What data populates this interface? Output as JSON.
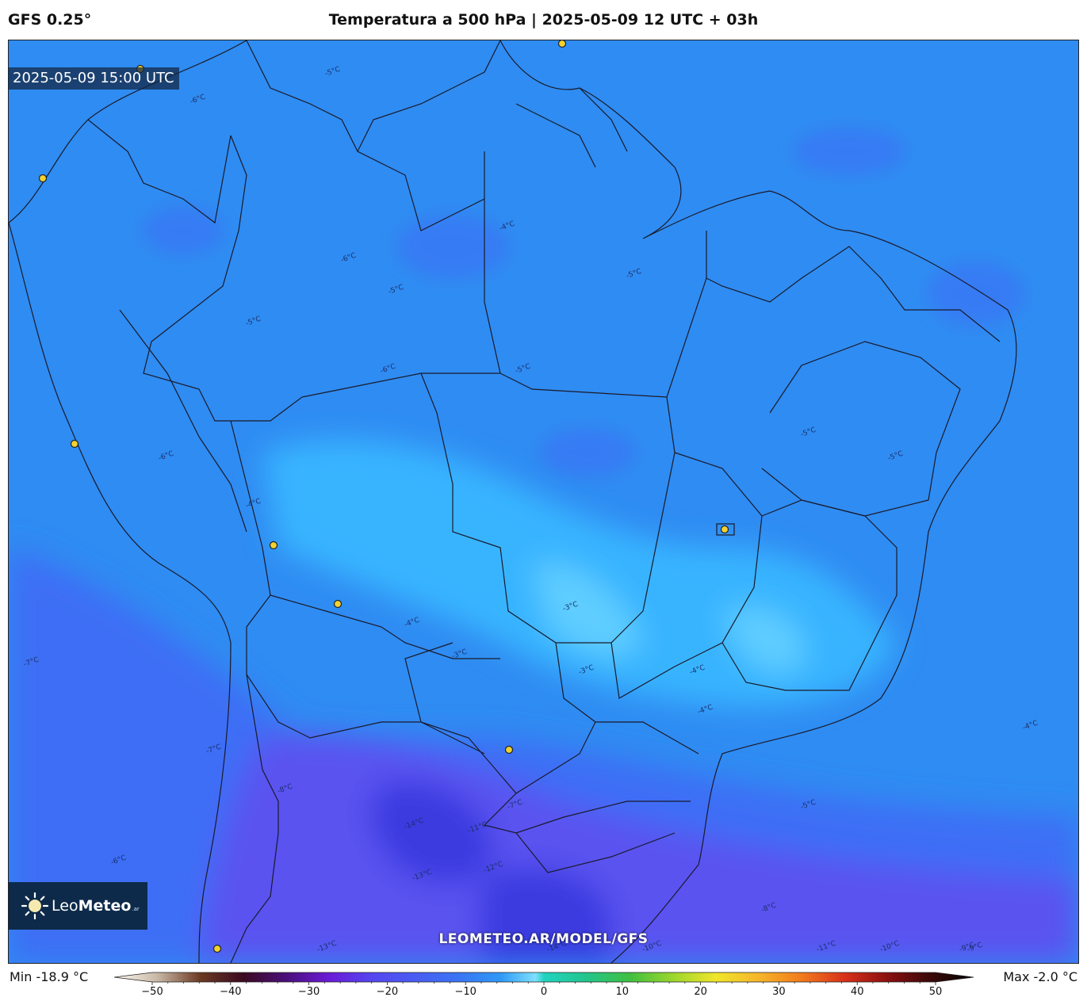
{
  "header": {
    "model": "GFS 0.25°",
    "title": "Temperatura a 500 hPa | 2025-05-09 12 UTC + 03h"
  },
  "map": {
    "valid_time": "2025-05-09 15:00 UTC",
    "watermark": "LEOMETEO.AR/MODEL/GFS",
    "colors": {
      "ocean_north": "#2f8cf2",
      "land_warm": "#38b4ff",
      "cool": "#3d6ef5",
      "cold": "#5a52f0",
      "coldest": "#3a3ae0",
      "border": "#1a1a2a",
      "city": "#f2d230"
    },
    "contour_labels": [
      {
        "text": "-5°C"
      },
      {
        "text": "-6°C"
      },
      {
        "text": "-6°C"
      },
      {
        "text": "-5°C"
      },
      {
        "text": "-4°C"
      },
      {
        "text": "-5°C"
      },
      {
        "text": "-6°C"
      },
      {
        "text": "-5°C"
      },
      {
        "text": "-5°C"
      },
      {
        "text": "-4°C"
      },
      {
        "text": "-4°C"
      },
      {
        "text": "-3°C"
      },
      {
        "text": "-3°C"
      },
      {
        "text": "-3°C"
      },
      {
        "text": "-4°C"
      },
      {
        "text": "-5°C"
      },
      {
        "text": "-6°C"
      },
      {
        "text": "-7°C"
      },
      {
        "text": "-7°C"
      },
      {
        "text": "-8°C"
      },
      {
        "text": "-6°C"
      },
      {
        "text": "-7°C"
      },
      {
        "text": "-11°C"
      },
      {
        "text": "-12°C"
      },
      {
        "text": "-13°C"
      },
      {
        "text": "-14°C"
      },
      {
        "text": "-14°C"
      },
      {
        "text": "-13°C"
      },
      {
        "text": "-8°C"
      },
      {
        "text": "-9°C"
      },
      {
        "text": "-10°C"
      },
      {
        "text": "-11°C"
      },
      {
        "text": "-10°C"
      },
      {
        "text": "-9°C"
      },
      {
        "text": "-4°C"
      },
      {
        "text": "-4°C"
      },
      {
        "text": "-5°C"
      },
      {
        "text": "-5°C"
      }
    ],
    "logo": {
      "part1": "Leo",
      "part2": "Meteo",
      "part3": ".ar"
    }
  },
  "colorbar": {
    "min_label": "Min -18.9 °C",
    "max_label": "Max -2.0 °C",
    "ticks": [
      "−50",
      "−40",
      "−30",
      "−20",
      "−10",
      "0",
      "10",
      "20",
      "30",
      "40",
      "50"
    ],
    "range": [
      -50,
      50
    ],
    "stops": [
      {
        "v": -50,
        "c": "#fdfbf2"
      },
      {
        "v": -45,
        "c": "#c9b8a6"
      },
      {
        "v": -40,
        "c": "#6b3a23"
      },
      {
        "v": -35,
        "c": "#3b0a20"
      },
      {
        "v": -30,
        "c": "#4a0f7a"
      },
      {
        "v": -25,
        "c": "#6a1bd6"
      },
      {
        "v": -20,
        "c": "#5546f0"
      },
      {
        "v": -15,
        "c": "#4a5cf2"
      },
      {
        "v": -10,
        "c": "#3a74f4"
      },
      {
        "v": -5,
        "c": "#2f9af6"
      },
      {
        "v": -1,
        "c": "#7ee0ff"
      },
      {
        "v": 0,
        "c": "#22d3c0"
      },
      {
        "v": 5,
        "c": "#22c58a"
      },
      {
        "v": 10,
        "c": "#40c040"
      },
      {
        "v": 15,
        "c": "#9bd62c"
      },
      {
        "v": 20,
        "c": "#f0e62a"
      },
      {
        "v": 25,
        "c": "#f6b52a"
      },
      {
        "v": 30,
        "c": "#f27a1c"
      },
      {
        "v": 35,
        "c": "#d8301a"
      },
      {
        "v": 40,
        "c": "#8a1010"
      },
      {
        "v": 45,
        "c": "#3a0808"
      },
      {
        "v": 50,
        "c": "#050505"
      }
    ]
  }
}
